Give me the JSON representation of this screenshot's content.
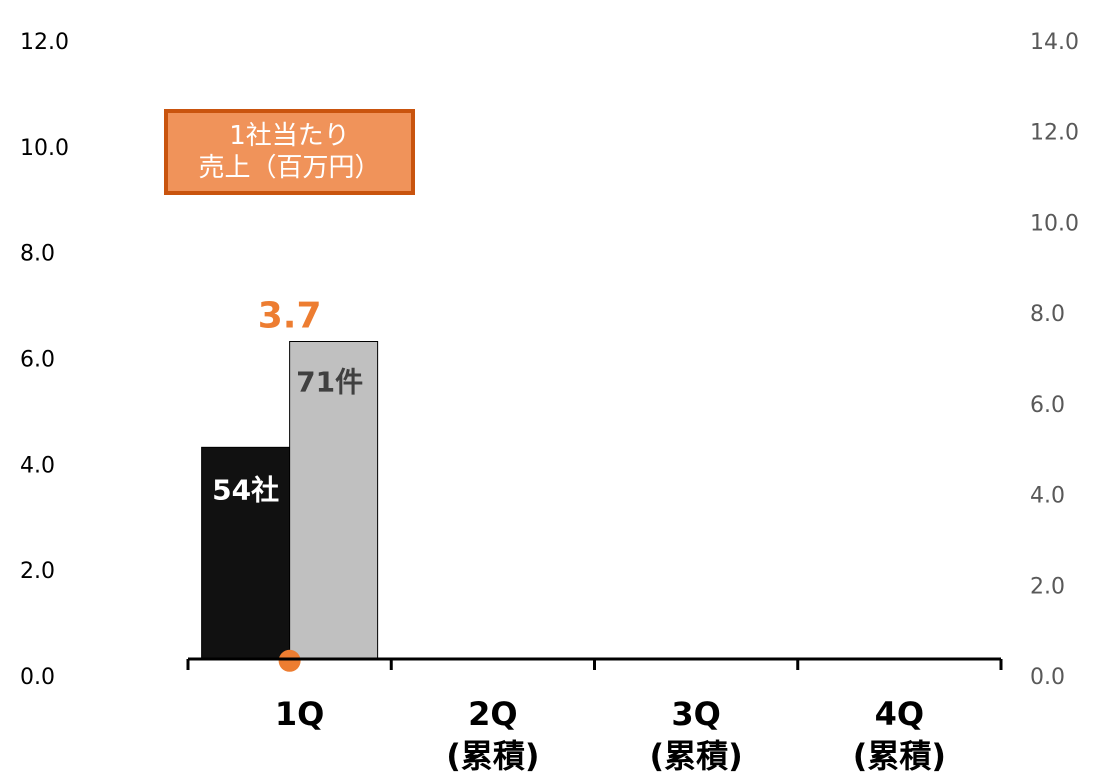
{
  "chart_data": {
    "type": "bar",
    "categories": [
      "1Q",
      "2Q\n(累積)",
      "3Q\n(累積)",
      "4Q\n(累積)"
    ],
    "category_lines": [
      [
        "1Q"
      ],
      [
        "2Q",
        "(累積)"
      ],
      [
        "3Q",
        "(累積)"
      ],
      [
        "4Q",
        "(累積)"
      ]
    ],
    "series": [
      {
        "axis": "left",
        "values": [
          4.0,
          null,
          null,
          null
        ],
        "color": "#111111",
        "data_label": "54社"
      },
      {
        "axis": "right",
        "values": [
          7.0,
          null,
          null,
          null
        ],
        "color": "#c0c0c0",
        "data_label": "71件"
      },
      {
        "name": "1社当たり売上（百万円）",
        "axis": "left",
        "kind": "point",
        "values": [
          1.1,
          null,
          null,
          null
        ],
        "color": "#ed7d31",
        "data_label": "3.7"
      }
    ],
    "y_left": {
      "ticks": [
        "0.0",
        "2.0",
        "4.0",
        "6.0",
        "8.0",
        "10.0",
        "12.0"
      ],
      "min": 0,
      "max": 12
    },
    "y_right": {
      "ticks": [
        "0.0",
        "2.0",
        "4.0",
        "6.0",
        "8.0",
        "10.0",
        "12.0",
        "14.0"
      ],
      "min": 0,
      "max": 14
    },
    "legend": {
      "line1": "1社当たり",
      "line2": "売上（百万円）",
      "position": "top-left"
    },
    "grid": false
  }
}
